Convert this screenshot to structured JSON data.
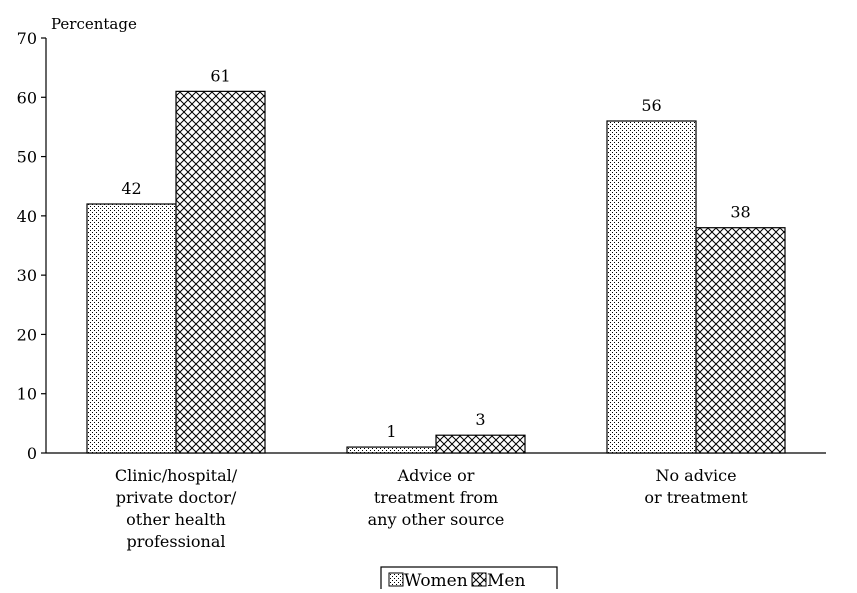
{
  "chart_data": {
    "type": "bar",
    "ylabel": "Percentage",
    "ylim": [
      0,
      70
    ],
    "yticks": [
      "0",
      "10",
      "20",
      "30",
      "40",
      "50",
      "60",
      "70"
    ],
    "categories": [
      "Clinic/hospital/ private doctor/ other health professional",
      "Advice or treatment from any other source",
      "No advice or treatment"
    ],
    "category_lines": [
      [
        "Clinic/hospital/",
        "private doctor/",
        "other health",
        "professional"
      ],
      [
        "Advice or",
        "treatment from",
        "any other source"
      ],
      [
        "No advice",
        "or treatment"
      ]
    ],
    "series": [
      {
        "name": "Women",
        "values": [
          42,
          1,
          56
        ],
        "labels": [
          "42",
          "1",
          "56"
        ]
      },
      {
        "name": "Men",
        "values": [
          61,
          3,
          38
        ],
        "labels": [
          "61",
          "3",
          "38"
        ]
      }
    ],
    "legend": {
      "placement": "bottom-center"
    },
    "grid": false
  }
}
